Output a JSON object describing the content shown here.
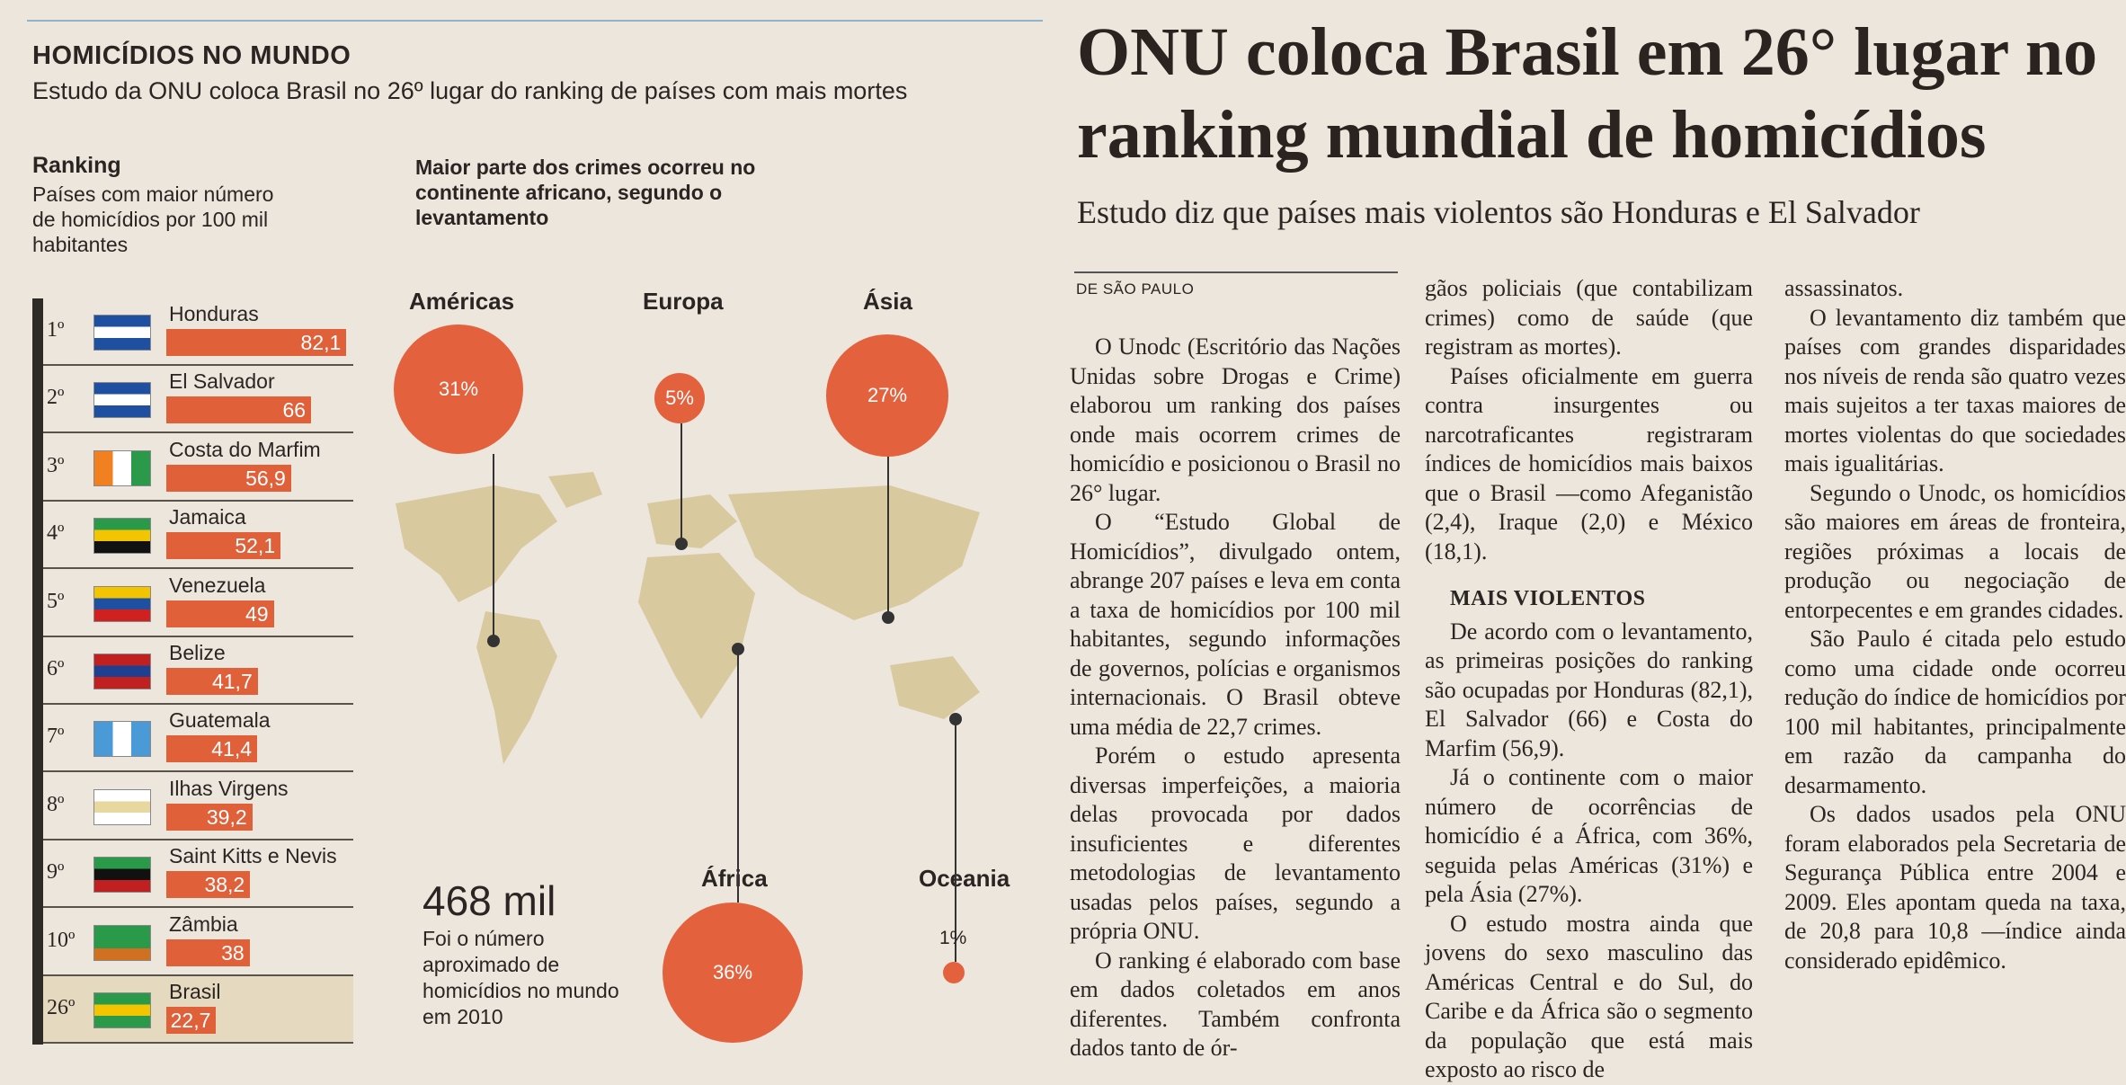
{
  "infographic": {
    "title": "HOMICÍDIOS NO MUNDO",
    "subtitle": "Estudo da ONU coloca Brasil no 26º lugar do ranking de países com mais mortes",
    "ranking_heading": "Ranking",
    "ranking_desc": "Países com maior número de homicídios por 100 mil habitantes",
    "map_heading": "Maior parte dos crimes ocorreu no continente africano, segundo o levantamento",
    "ranking": [
      {
        "rank": "1º",
        "name": "Honduras",
        "value": 82.1,
        "label": "82,1",
        "flag": [
          "#1f4fa0",
          "#ffffff",
          "#1f4fa0"
        ]
      },
      {
        "rank": "2º",
        "name": "El Salvador",
        "value": 66,
        "label": "66",
        "flag": [
          "#1f4fa0",
          "#ffffff",
          "#1f4fa0"
        ]
      },
      {
        "rank": "3º",
        "name": "Costa do Marfim",
        "value": 56.9,
        "label": "56,9",
        "flag": [
          "#f08020",
          "#ffffff",
          "#2a9a4a"
        ],
        "vertical": true
      },
      {
        "rank": "4º",
        "name": "Jamaica",
        "value": 52.1,
        "label": "52,1",
        "flag": [
          "#2a9a4a",
          "#f2c500",
          "#111111"
        ]
      },
      {
        "rank": "5º",
        "name": "Venezuela",
        "value": 49,
        "label": "49",
        "flag": [
          "#f2c500",
          "#1f4fa0",
          "#d02020"
        ]
      },
      {
        "rank": "6º",
        "name": "Belize",
        "value": 41.7,
        "label": "41,7",
        "flag": [
          "#c02020",
          "#1f3f90",
          "#c02020"
        ]
      },
      {
        "rank": "7º",
        "name": "Guatemala",
        "value": 41.4,
        "label": "41,4",
        "flag": [
          "#4a9ad8",
          "#ffffff",
          "#4a9ad8"
        ],
        "vertical": true
      },
      {
        "rank": "8º",
        "name": "Ilhas Virgens",
        "value": 39.2,
        "label": "39,2",
        "flag": [
          "#ffffff",
          "#e8d8a0",
          "#ffffff"
        ]
      },
      {
        "rank": "9º",
        "name": "Saint Kitts e Nevis",
        "value": 38.2,
        "label": "38,2",
        "flag": [
          "#2a9a4a",
          "#111111",
          "#c02020"
        ]
      },
      {
        "rank": "10º",
        "name": "Zâmbia",
        "value": 38,
        "label": "38",
        "flag": [
          "#2a9a4a",
          "#2a9a4a",
          "#d07020"
        ]
      },
      {
        "rank": "26º",
        "name": "Brasil",
        "value": 22.7,
        "label": "22,7",
        "flag": [
          "#2a9a4a",
          "#f2c500",
          "#2a9a4a"
        ]
      }
    ],
    "continents": [
      {
        "name": "Américas",
        "share": "31%"
      },
      {
        "name": "Europa",
        "share": "5%"
      },
      {
        "name": "Ásia",
        "share": "27%"
      },
      {
        "name": "África",
        "share": "36%"
      },
      {
        "name": "Oceania",
        "share": "1%"
      }
    ],
    "total_value": "468 mil",
    "total_desc": "Foi o número aproximado de homicídios no mundo em 2010",
    "accent": "#e4613d"
  },
  "article": {
    "headline_1": "ONU coloca Brasil em 26° lugar no",
    "headline_2": "ranking mundial de homicídios",
    "deck": "Estudo diz que países mais violentos são Honduras e El Salvador",
    "byline": "DE SÃO PAULO",
    "col1": [
      "O Unodc (Escritório das Nações Unidas sobre Drogas e Crime) elaborou um ranking dos países onde mais ocorrem crimes de homicídio e posicionou o Brasil no 26° lugar.",
      "O “Estudo Global de Homicídios”, divulgado ontem, abrange 207 países e leva em conta a taxa de homicídios por 100 mil habitantes, segundo informações de governos, polícias e organismos internacionais. O Brasil obteve uma média de 22,7 crimes.",
      "Porém o estudo apresenta diversas imperfeições, a maioria delas provocada por dados insuficientes e diferentes metodologias de levantamento usadas pelos países, segundo a própria ONU.",
      "O ranking é elaborado com base em dados coletados em anos diferentes. Também confronta dados tanto de ór-"
    ],
    "col2_a": [
      "gãos policiais (que contabilizam crimes) como de saúde (que registram as mortes).",
      "Países oficialmente em guerra contra insurgentes ou narcotraficantes registraram índices de homicídios mais baixos que o Brasil —como Afeganistão (2,4), Iraque (2,0) e México (18,1)."
    ],
    "subhead": "MAIS VIOLENTOS",
    "col2_b": [
      "De acordo com o levantamento, as primeiras posições do ranking são ocupadas por Honduras (82,1), El Salvador (66) e Costa do Marfim (56,9).",
      "Já o continente com o maior número de ocorrências de homicídio é a África, com 36%, seguida pelas Américas (31%) e pela Ásia (27%).",
      "O estudo mostra ainda que jovens do sexo masculino das Américas Central e do Sul, do Caribe e da África são o segmento da população que está mais exposto ao risco de"
    ],
    "col3": [
      "assassinatos.",
      "O levantamento diz também que países com grandes disparidades nos níveis de renda são quatro vezes mais sujeitos a ter taxas maiores de mortes violentas do que sociedades mais igualitárias.",
      "Segundo o Unodc, os homicídios são maiores em áreas de fronteira, regiões próximas a locais de produção ou negociação de entorpecentes e em grandes cidades.",
      "São Paulo é citada pelo estudo como uma cidade onde ocorreu redução do índice de homicídios por 100 mil habitantes, principalmente em razão da campanha do desarmamento.",
      "Os dados usados pela ONU foram elaborados pela Secretaria de Segurança Pública entre 2004 e 2009. Eles apontam queda na taxa, de 20,8 para 10,8 —índice ainda considerado epidêmico."
    ]
  }
}
